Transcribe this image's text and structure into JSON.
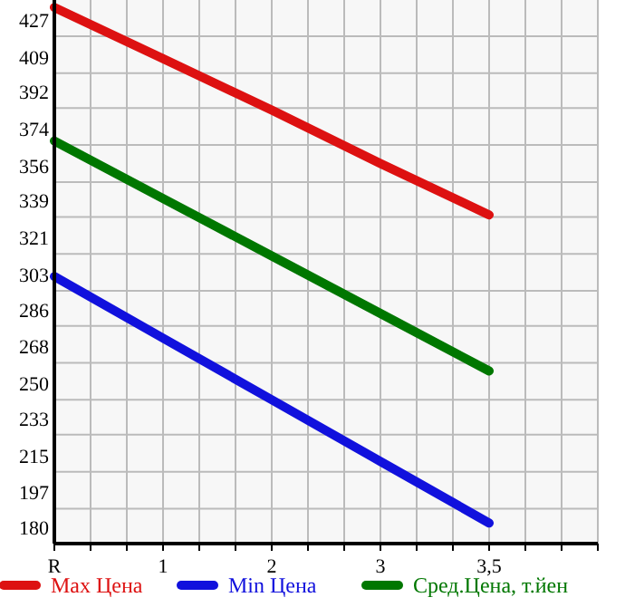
{
  "chart_data": {
    "type": "line",
    "categories": [
      "R",
      "1",
      "2",
      "3",
      "3,5"
    ],
    "series": [
      {
        "name": "Max Цена",
        "color": "#dd1111",
        "values": [
          441,
          416,
          391,
          365,
          340
        ]
      },
      {
        "name": "Min Цена",
        "color": "#1111dd",
        "values": [
          310,
          280,
          250,
          220,
          190
        ]
      },
      {
        "name": "Сред.Цена, т.йен",
        "color": "#007700",
        "values": [
          376,
          348,
          320,
          292,
          264
        ]
      }
    ],
    "ylim": [
      180,
      444.6
    ],
    "yticks": [
      180,
      197,
      215,
      233,
      250,
      268,
      286,
      303,
      321,
      339,
      356,
      374,
      392,
      409,
      427
    ],
    "grid": true,
    "legend": "bottom",
    "marker": "none",
    "line_style": "solid"
  }
}
